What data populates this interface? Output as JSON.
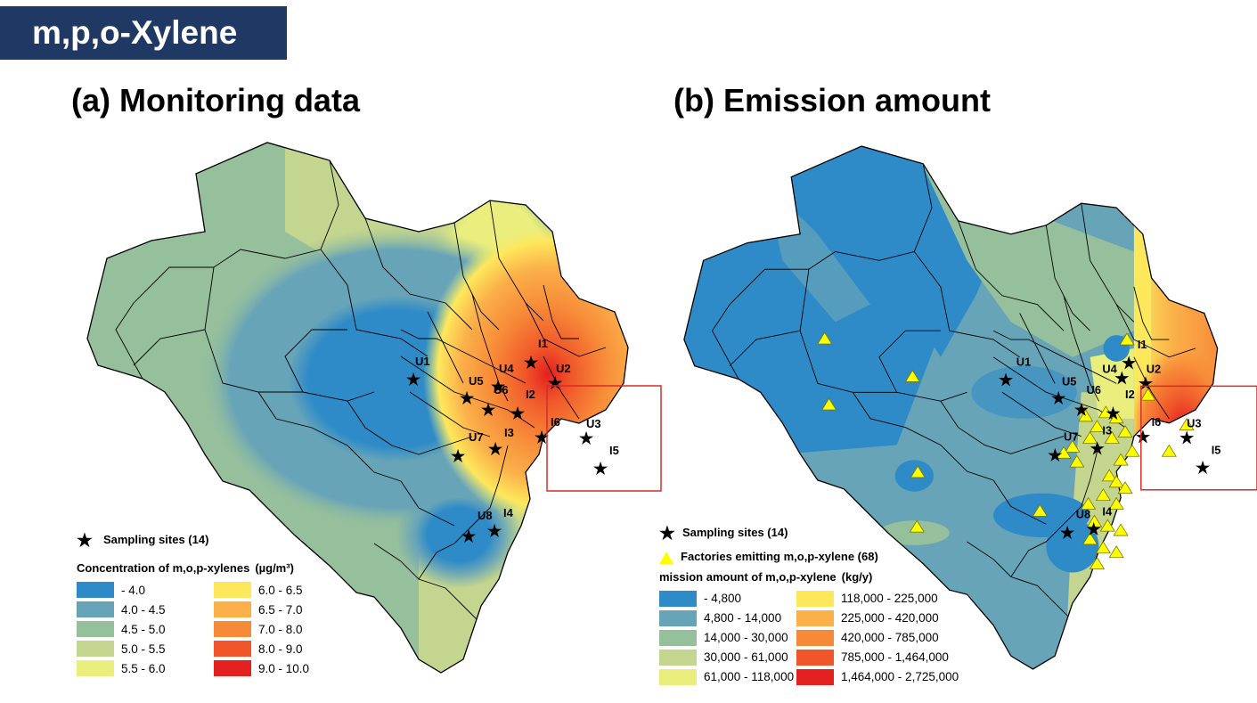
{
  "header": {
    "title": "m,p,o-Xylene"
  },
  "panel_a": {
    "title": "(a) Monitoring data",
    "legend": {
      "sites_label": "Sampling sites (14)",
      "heading": "Concentration of m,o,p-xylenes",
      "unit": "(µg/m³)",
      "classes": [
        {
          "label": " - 4.0",
          "color": "#2e8bc8"
        },
        {
          "label": "4.0 - 4.5",
          "color": "#67a4b8"
        },
        {
          "label": "4.5 - 5.0",
          "color": "#96bf9c"
        },
        {
          "label": "5.0 - 5.5",
          "color": "#c3d58e"
        },
        {
          "label": "5.5 - 6.0",
          "color": "#eaee7c"
        },
        {
          "label": "6.0 - 6.5",
          "color": "#fde85c"
        },
        {
          "label": "6.5 - 7.0",
          "color": "#fbb04a"
        },
        {
          "label": "7.0 - 8.0",
          "color": "#f78a38"
        },
        {
          "label": "8.0 - 9.0",
          "color": "#f0562a"
        },
        {
          "label": "9.0 - 10.0",
          "color": "#e41f1f"
        }
      ]
    },
    "sites": [
      "U1",
      "U2",
      "U3",
      "U4",
      "U5",
      "U6",
      "U7",
      "U8",
      "I1",
      "I2",
      "I3",
      "I4",
      "I5",
      "I6"
    ]
  },
  "panel_b": {
    "title": "(b) Emission amount",
    "legend": {
      "sites_label": "Sampling sites (14)",
      "factories_label": "Factories emitting m,o,p-xylene (68)",
      "heading": "mission amount of m,o,p-xylene",
      "unit": "(kg/y)",
      "classes": [
        {
          "label": " - 4,800",
          "color": "#2e8bc8"
        },
        {
          "label": "4,800 - 14,000",
          "color": "#67a4b8"
        },
        {
          "label": "14,000 - 30,000",
          "color": "#96bf9c"
        },
        {
          "label": "30,000 - 61,000",
          "color": "#c3d58e"
        },
        {
          "label": "61,000 - 118,000",
          "color": "#eaee7c"
        },
        {
          "label": "118,000 - 225,000",
          "color": "#fde85c"
        },
        {
          "label": "225,000 - 420,000",
          "color": "#fbb04a"
        },
        {
          "label": "420,000 - 785,000",
          "color": "#f78a38"
        },
        {
          "label": "785,000 - 1,464,000",
          "color": "#f0562a"
        },
        {
          "label": "1,464,000 - 2,725,000",
          "color": "#e41f1f"
        }
      ]
    },
    "sites": [
      "U1",
      "U2",
      "U3",
      "U4",
      "U5",
      "U6",
      "U7",
      "U8",
      "I1",
      "I2",
      "I3",
      "I4",
      "I5",
      "I6"
    ]
  }
}
